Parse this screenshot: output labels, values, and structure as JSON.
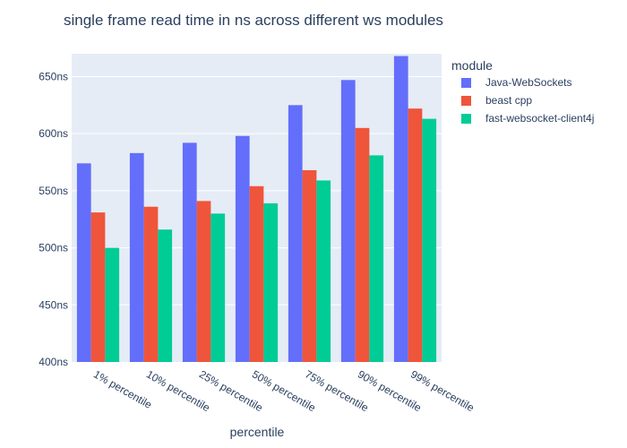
{
  "chart_data": {
    "type": "bar",
    "title": "single frame read time in ns across different ws modules",
    "xlabel": "percentile",
    "ylabel": "",
    "categories": [
      "1% percentile",
      "10% percentile",
      "25% percentile",
      "50% percentile",
      "75% percentile",
      "90% percentile",
      "99% percentile"
    ],
    "series": [
      {
        "name": "Java-WebSockets",
        "color": "#636efa",
        "values": [
          574,
          583,
          592,
          598,
          625,
          647,
          668
        ]
      },
      {
        "name": "beast cpp",
        "color": "#ef553b",
        "values": [
          531,
          536,
          541,
          554,
          568,
          605,
          622
        ]
      },
      {
        "name": "fast-websocket-client4j",
        "color": "#00cc96",
        "values": [
          500,
          516,
          530,
          539,
          559,
          581,
          613
        ]
      }
    ],
    "ylim": [
      400,
      670
    ],
    "yticks": [
      "400ns",
      "450ns",
      "500ns",
      "550ns",
      "600ns",
      "650ns"
    ],
    "ytick_values": [
      400,
      450,
      500,
      550,
      600,
      650
    ],
    "legend_title": "module",
    "legend_position": "top-right",
    "grid": true,
    "plot_bg": "#e5ecf6"
  }
}
